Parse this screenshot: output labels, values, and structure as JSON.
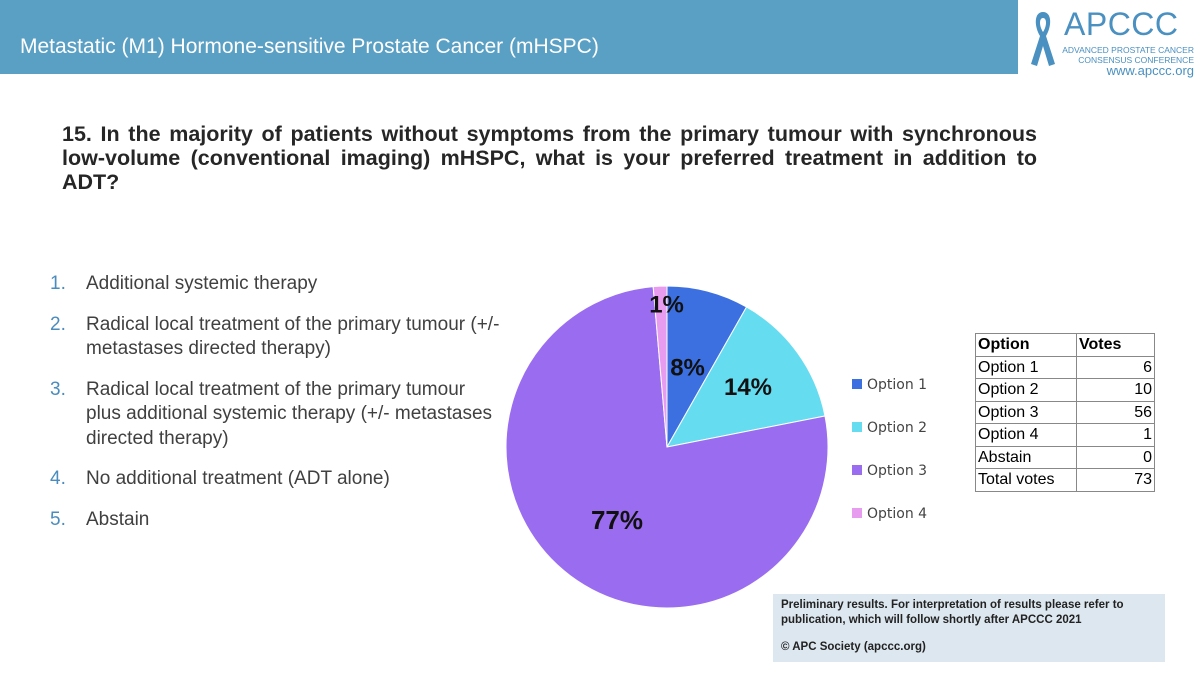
{
  "header": {
    "title": "Metastatic (M1) Hormone-sensitive Prostate Cancer (mHSPC)",
    "bar_color": "#5a9fc4"
  },
  "logo": {
    "name": "APCCC",
    "sub_line1": "ADVANCED PROSTATE CANCER",
    "sub_line2": "CONSENSUS CONFERENCE",
    "url": "www.apccc.org",
    "icon": "awareness-ribbon-icon"
  },
  "question": "15. In the majority of patients without symptoms from the primary tumour with synchronous low-volume (conventional imaging) mHSPC, what is your preferred treatment in addition to ADT?",
  "options": [
    {
      "num": "1.",
      "text": "Additional systemic therapy"
    },
    {
      "num": "2.",
      "text": "Radical local treatment of the primary tumour (+/- metastases directed therapy)"
    },
    {
      "num": "3.",
      "text": "Radical local treatment of the primary tumour plus additional systemic therapy (+/- metastases directed therapy)"
    },
    {
      "num": "4.",
      "text": "No additional treatment (ADT alone)"
    },
    {
      "num": "5.",
      "text": "Abstain"
    }
  ],
  "chart_data": {
    "type": "pie",
    "categories": [
      "Option 1",
      "Option 2",
      "Option 3",
      "Option 4"
    ],
    "values": [
      6,
      10,
      56,
      1
    ],
    "labels": [
      "8%",
      "14%",
      "77%",
      "1%"
    ],
    "colors": [
      "#3c6fe0",
      "#66dcf0",
      "#9a6cf0",
      "#e89cf0"
    ],
    "legend_position": "right",
    "start_angle_deg": 0,
    "direction": "clockwise"
  },
  "table": {
    "headers": [
      "Option",
      "Votes"
    ],
    "rows": [
      [
        "Option 1",
        "6"
      ],
      [
        "Option 2",
        "10"
      ],
      [
        "Option 3",
        "56"
      ],
      [
        "Option 4",
        "1"
      ],
      [
        "Abstain",
        "0"
      ],
      [
        "Total votes",
        "73"
      ]
    ]
  },
  "footnote": {
    "text": "Preliminary results. For interpretation of results please refer to publication, which will follow shortly after APCCC 2021",
    "copyright": "© APC Society (apccc.org)"
  }
}
